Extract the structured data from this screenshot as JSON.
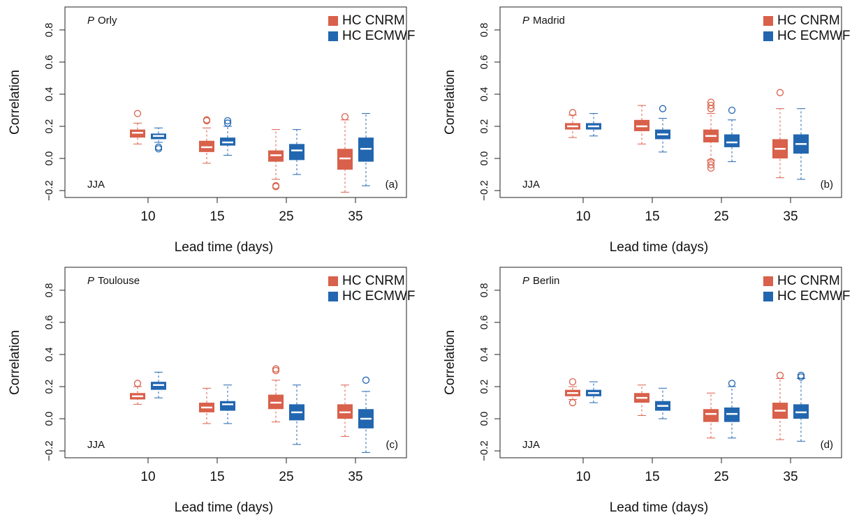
{
  "chart_data": [
    {
      "type": "box",
      "title_prefix": "P",
      "title": "Orly",
      "season": "JJA",
      "panel_label": "(a)",
      "xlabel": "Lead time (days)",
      "ylabel": "Correlation",
      "categories": [
        "10",
        "15",
        "25",
        "35"
      ],
      "ylim": [
        -0.243,
        0.943
      ],
      "yticks": [
        {
          "value": -0.2,
          "label": "−0.2"
        },
        {
          "value": 0,
          "label": "0.0"
        },
        0.2,
        0.4,
        0.6,
        0.8
      ],
      "legend": "upper right",
      "series": [
        {
          "name": "HC CNRM",
          "color": "#d9604a",
          "whislo": [
            0.09,
            -0.03,
            -0.13,
            -0.21
          ],
          "q1": [
            0.13,
            0.04,
            -0.02,
            -0.07
          ],
          "med": [
            0.16,
            0.07,
            0.02,
            0.0
          ],
          "q3": [
            0.18,
            0.11,
            0.05,
            0.06
          ],
          "whishi": [
            0.22,
            0.19,
            0.18,
            0.24
          ],
          "outliers": [
            [
              0.28
            ],
            [
              0.24,
              0.235
            ],
            [
              -0.17,
              -0.175
            ],
            [
              0.26
            ]
          ]
        },
        {
          "name": "HC ECMWF",
          "color": "#2266b0",
          "whislo": [
            0.1,
            0.02,
            -0.1,
            -0.17
          ],
          "q1": [
            0.12,
            0.08,
            -0.01,
            -0.02
          ],
          "med": [
            0.14,
            0.1,
            0.05,
            0.06
          ],
          "q3": [
            0.155,
            0.13,
            0.09,
            0.13
          ],
          "whishi": [
            0.19,
            0.2,
            0.18,
            0.28
          ],
          "outliers": [
            [
              0.07,
              0.06
            ],
            [
              0.235,
              0.22
            ],
            [],
            []
          ]
        }
      ]
    },
    {
      "type": "box",
      "title_prefix": "P",
      "title": "Madrid",
      "season": "JJA",
      "panel_label": "(b)",
      "xlabel": "Lead time (days)",
      "ylabel": "Correlation",
      "categories": [
        "10",
        "15",
        "25",
        "35"
      ],
      "ylim": [
        -0.243,
        0.943
      ],
      "yticks": [
        {
          "value": -0.2,
          "label": "−0.2"
        },
        {
          "value": 0,
          "label": "0.0"
        },
        0.2,
        0.4,
        0.6,
        0.8
      ],
      "legend": "upper right",
      "series": [
        {
          "name": "HC CNRM",
          "color": "#d9604a",
          "whislo": [
            0.13,
            0.09,
            -0.01,
            -0.12
          ],
          "q1": [
            0.18,
            0.17,
            0.1,
            0.0
          ],
          "med": [
            0.2,
            0.2,
            0.14,
            0.06
          ],
          "q3": [
            0.22,
            0.24,
            0.18,
            0.12
          ],
          "whishi": [
            0.27,
            0.33,
            0.28,
            0.31
          ],
          "outliers": [
            [
              0.285
            ],
            [],
            [
              0.35,
              0.33,
              0.31,
              -0.02,
              -0.04,
              -0.06
            ],
            [
              0.41
            ]
          ]
        },
        {
          "name": "HC ECMWF",
          "color": "#2266b0",
          "whislo": [
            0.14,
            0.04,
            -0.02,
            -0.13
          ],
          "q1": [
            0.18,
            0.12,
            0.07,
            0.03
          ],
          "med": [
            0.2,
            0.15,
            0.1,
            0.09
          ],
          "q3": [
            0.22,
            0.18,
            0.15,
            0.15
          ],
          "whishi": [
            0.28,
            0.25,
            0.24,
            0.31
          ],
          "outliers": [
            [],
            [
              0.31
            ],
            [
              0.3
            ],
            []
          ]
        }
      ]
    },
    {
      "type": "box",
      "title_prefix": "P",
      "title": "Toulouse",
      "season": "JJA",
      "panel_label": "(c)",
      "xlabel": "Lead time (days)",
      "ylabel": "Correlation",
      "categories": [
        "10",
        "15",
        "25",
        "35"
      ],
      "ylim": [
        -0.243,
        0.943
      ],
      "yticks": [
        {
          "value": -0.2,
          "label": "−0.2"
        },
        {
          "value": 0,
          "label": "0.0"
        },
        0.2,
        0.4,
        0.6,
        0.8
      ],
      "legend": "upper right",
      "series": [
        {
          "name": "HC CNRM",
          "color": "#d9604a",
          "whislo": [
            0.09,
            -0.03,
            -0.02,
            -0.11
          ],
          "q1": [
            0.12,
            0.04,
            0.06,
            0.0
          ],
          "med": [
            0.14,
            0.07,
            0.1,
            0.04
          ],
          "q3": [
            0.16,
            0.1,
            0.15,
            0.09
          ],
          "whishi": [
            0.2,
            0.19,
            0.24,
            0.21
          ],
          "outliers": [
            [
              0.22
            ],
            [],
            [
              0.31,
              0.3
            ],
            []
          ]
        },
        {
          "name": "HC ECMWF",
          "color": "#2266b0",
          "whislo": [
            0.13,
            -0.03,
            -0.16,
            -0.21
          ],
          "q1": [
            0.18,
            0.05,
            -0.01,
            -0.06
          ],
          "med": [
            0.21,
            0.09,
            0.04,
            0.0
          ],
          "q3": [
            0.23,
            0.11,
            0.09,
            0.06
          ],
          "whishi": [
            0.29,
            0.21,
            0.21,
            0.17
          ],
          "outliers": [
            [],
            [],
            [],
            [
              0.24
            ]
          ]
        }
      ]
    },
    {
      "type": "box",
      "title_prefix": "P",
      "title": "Berlin",
      "season": "JJA",
      "panel_label": "(d)",
      "xlabel": "Lead time (days)",
      "ylabel": "Correlation",
      "categories": [
        "10",
        "15",
        "25",
        "35"
      ],
      "ylim": [
        -0.243,
        0.943
      ],
      "yticks": [
        {
          "value": -0.2,
          "label": "−0.2"
        },
        {
          "value": 0,
          "label": "0.0"
        },
        0.2,
        0.4,
        0.6,
        0.8
      ],
      "legend": "upper right",
      "series": [
        {
          "name": "HC CNRM",
          "color": "#d9604a",
          "whislo": [
            0.12,
            0.02,
            -0.12,
            -0.13
          ],
          "q1": [
            0.14,
            0.1,
            -0.02,
            0.0
          ],
          "med": [
            0.16,
            0.13,
            0.03,
            0.05
          ],
          "q3": [
            0.18,
            0.16,
            0.06,
            0.1
          ],
          "whishi": [
            0.2,
            0.21,
            0.16,
            0.25
          ],
          "outliers": [
            [
              0.23,
              0.1
            ],
            [],
            [],
            [
              0.27
            ]
          ]
        },
        {
          "name": "HC ECMWF",
          "color": "#2266b0",
          "whislo": [
            0.1,
            0.0,
            -0.12,
            -0.14
          ],
          "q1": [
            0.14,
            0.05,
            -0.02,
            0.0
          ],
          "med": [
            0.16,
            0.08,
            0.03,
            0.04
          ],
          "q3": [
            0.18,
            0.11,
            0.07,
            0.09
          ],
          "whishi": [
            0.23,
            0.19,
            0.2,
            0.25
          ],
          "outliers": [
            [],
            [],
            [
              0.22
            ],
            [
              0.27,
              0.26
            ]
          ]
        }
      ]
    }
  ]
}
